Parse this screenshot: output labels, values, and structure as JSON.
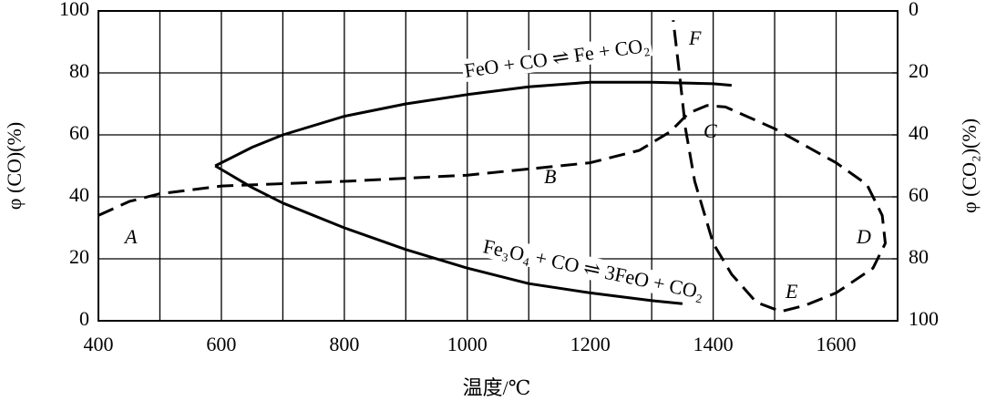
{
  "chart_data": {
    "type": "line",
    "xlabel": "温度/℃",
    "ylabel": "φ (CO)(%)",
    "y2label": "φ (CO₂)(%)",
    "xlim": [
      400,
      1700
    ],
    "xticks": [
      400,
      600,
      800,
      1000,
      1200,
      1400,
      1600
    ],
    "xminor": [
      500,
      700,
      900,
      1100,
      1300,
      1500,
      1700
    ],
    "ylim": [
      0,
      100
    ],
    "yticks": [
      0,
      20,
      40,
      60,
      80,
      100
    ],
    "y2lim": [
      100,
      0
    ],
    "y2ticks": [
      0,
      20,
      40,
      60,
      80,
      100
    ],
    "grid": true,
    "series": [
      {
        "color": "#000000",
        "dash": false,
        "x": [
          590,
          650,
          700,
          800,
          900,
          1000,
          1100,
          1200,
          1300,
          1400,
          1430
        ],
        "values": [
          50,
          56,
          60,
          66,
          70,
          73,
          75.5,
          77,
          77,
          76.5,
          76
        ]
      },
      {
        "color": "#000000",
        "dash": false,
        "x": [
          590,
          650,
          700,
          800,
          900,
          1000,
          1100,
          1200,
          1300,
          1350
        ],
        "values": [
          50,
          43,
          38,
          30,
          23,
          17,
          12,
          9,
          6.5,
          5.5
        ]
      },
      {
        "color": "#000000",
        "dash": true,
        "x": [
          400,
          450,
          500,
          600,
          800,
          1000,
          1200,
          1280,
          1330,
          1360,
          1390,
          1420,
          1500,
          1600,
          1650,
          1675,
          1680,
          1660,
          1600,
          1550,
          1510,
          1470,
          1430,
          1400,
          1370,
          1355,
          1345,
          1335
        ],
        "values": [
          34,
          38.5,
          41,
          43.5,
          45,
          47,
          51,
          55,
          61,
          67,
          69.5,
          69,
          62,
          51,
          44,
          34,
          25,
          17,
          9,
          5,
          3,
          6,
          15,
          25,
          45,
          62,
          80,
          97
        ]
      }
    ],
    "annotations": [
      "FeO + CO ⇌ Fe + CO₂",
      "Fe₃O₄ + CO ⇌ 3FeO + CO₂",
      "A",
      "B",
      "C",
      "D",
      "E",
      "F"
    ]
  }
}
